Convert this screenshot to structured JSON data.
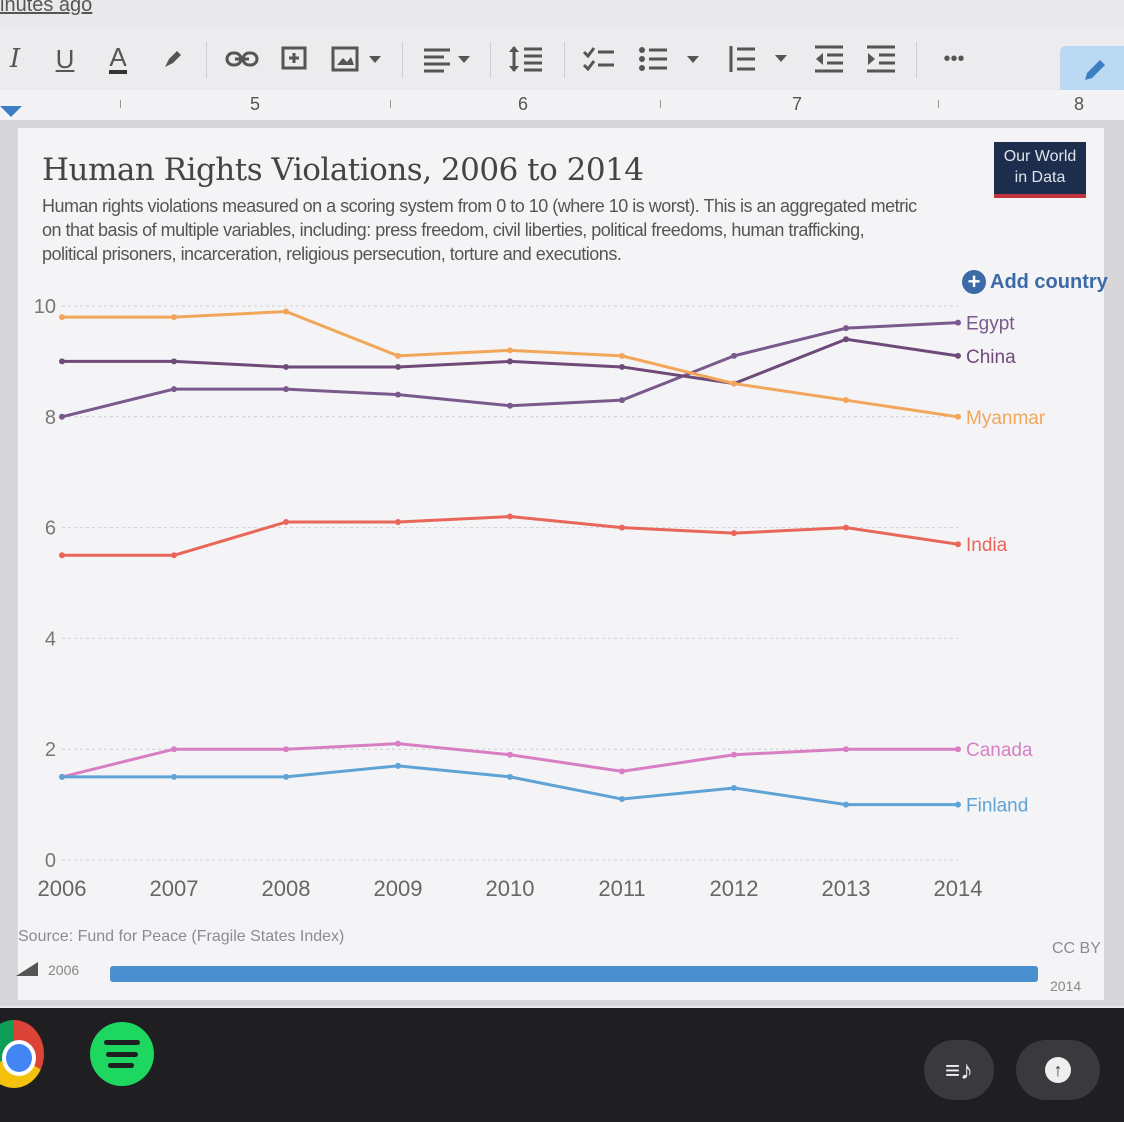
{
  "doc": {
    "status_text": "inutes ago"
  },
  "toolbar": {
    "italic": "I",
    "underline": "U",
    "text_color": "A",
    "icons": [
      "italic-icon",
      "underline-icon",
      "text-color-icon",
      "highlight-icon",
      "link-icon",
      "comment-icon",
      "image-icon",
      "align-icon",
      "line-spacing-icon",
      "checklist-icon",
      "bullet-list-icon",
      "numbered-list-icon",
      "decrease-indent-icon",
      "increase-indent-icon",
      "more-icon",
      "edit-pencil-icon"
    ],
    "more": "•••"
  },
  "ruler": {
    "numbers": [
      "5",
      "6",
      "7",
      "8"
    ]
  },
  "chart_header": {
    "title": "Human Rights Violations, 2006 to 2014",
    "subtitle": "Human rights violations measured on a scoring system from 0 to 10 (where 10 is worst). This is an aggregated metric on that basis of multiple variables, including: press freedom, civil liberties, political freedoms, human trafficking, political prisoners, incarceration, religious persecution, torture and executions.",
    "logo_line1": "Our World",
    "logo_line2": "in Data",
    "add_country": "Add country"
  },
  "chart_data": {
    "type": "line",
    "title": "Human Rights Violations, 2006 to 2014",
    "x": [
      2006,
      2007,
      2008,
      2009,
      2010,
      2011,
      2012,
      2013,
      2014
    ],
    "x_ticks": [
      "2006",
      "2007",
      "2008",
      "2009",
      "2010",
      "2011",
      "2012",
      "2013",
      "2014"
    ],
    "y_ticks": [
      "0",
      "2",
      "4",
      "6",
      "8",
      "10"
    ],
    "ylim": [
      0,
      10
    ],
    "grid": true,
    "legend": "right, labels at line ends",
    "series": [
      {
        "name": "Egypt",
        "color": "#7a5a8c",
        "values": [
          8.0,
          8.5,
          8.5,
          8.4,
          8.2,
          8.3,
          9.1,
          9.6,
          9.7
        ]
      },
      {
        "name": "China",
        "color": "#6e4a78",
        "values": [
          9.0,
          9.0,
          8.9,
          8.9,
          9.0,
          8.9,
          8.6,
          9.4,
          9.1
        ]
      },
      {
        "name": "Myanmar",
        "color": "#f2a65a",
        "values": [
          9.8,
          9.8,
          9.9,
          9.1,
          9.2,
          9.1,
          8.6,
          8.3,
          8.0
        ]
      },
      {
        "name": "India",
        "color": "#e8665a",
        "values": [
          5.5,
          5.5,
          6.1,
          6.1,
          6.2,
          6.0,
          5.9,
          6.0,
          5.7
        ]
      },
      {
        "name": "Canada",
        "color": "#d87fc4",
        "values": [
          1.5,
          2.0,
          2.0,
          2.1,
          1.9,
          1.6,
          1.9,
          2.0,
          2.0
        ]
      },
      {
        "name": "Finland",
        "color": "#5fa3d6",
        "values": [
          1.5,
          1.5,
          1.5,
          1.7,
          1.5,
          1.1,
          1.3,
          1.0,
          1.0
        ]
      }
    ]
  },
  "footer": {
    "source": "Source: Fund for Peace (Fragile States Index)",
    "license": "CC BY",
    "timeline_start": "2006",
    "timeline_end": "2014",
    "timeline_progress": 1.0
  },
  "taskbar": {
    "icons": [
      "chrome-icon",
      "spotify-icon",
      "playlist-icon",
      "upload-icon"
    ]
  }
}
